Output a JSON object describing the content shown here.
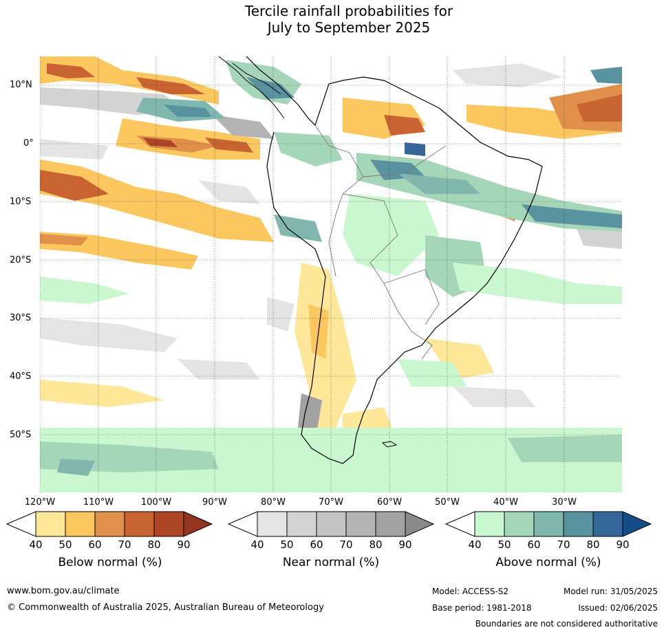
{
  "title_line1": "Tercile rainfall probabilities for",
  "title_line2": "July to September 2025",
  "map": {
    "lat_labels": [
      "10°N",
      "0°",
      "10°S",
      "20°S",
      "30°S",
      "40°S",
      "50°S"
    ],
    "lon_labels": [
      "120°W",
      "110°W",
      "100°W",
      "90°W",
      "80°W",
      "70°W",
      "60°W",
      "50°W",
      "40°W",
      "30°W"
    ]
  },
  "legends": [
    {
      "title": "Below normal (%)",
      "ticks": [
        "40",
        "50",
        "60",
        "70",
        "80",
        "90"
      ],
      "colors": [
        "#ffe79a",
        "#fdc760",
        "#e0904a",
        "#c96432",
        "#ad4627",
        "#93361f"
      ]
    },
    {
      "title": "Near normal (%)",
      "ticks": [
        "40",
        "50",
        "60",
        "70",
        "80",
        "90"
      ],
      "colors": [
        "#e4e4e4",
        "#d3d3d3",
        "#c3c3c3",
        "#b4b4b4",
        "#a2a2a2",
        "#8a8a8a"
      ]
    },
    {
      "title": "Above normal (%)",
      "ticks": [
        "40",
        "50",
        "60",
        "70",
        "80",
        "90"
      ],
      "colors": [
        "#c9f7ce",
        "#a6d6b8",
        "#80b7ae",
        "#5a93a0",
        "#35679a",
        "#154e87"
      ]
    }
  ],
  "footer": {
    "website": "www.bom.gov.au/climate",
    "copyright": "© Commonwealth of Australia 2025, Australian Bureau of Meteorology",
    "model": "Model: ACCESS-S2",
    "model_run": "Model run: 31/05/2025",
    "base_period": "Base period: 1981-2018",
    "issued": "Issued: 02/06/2025",
    "disclaimer": "Boundaries are not considered authoritative"
  }
}
